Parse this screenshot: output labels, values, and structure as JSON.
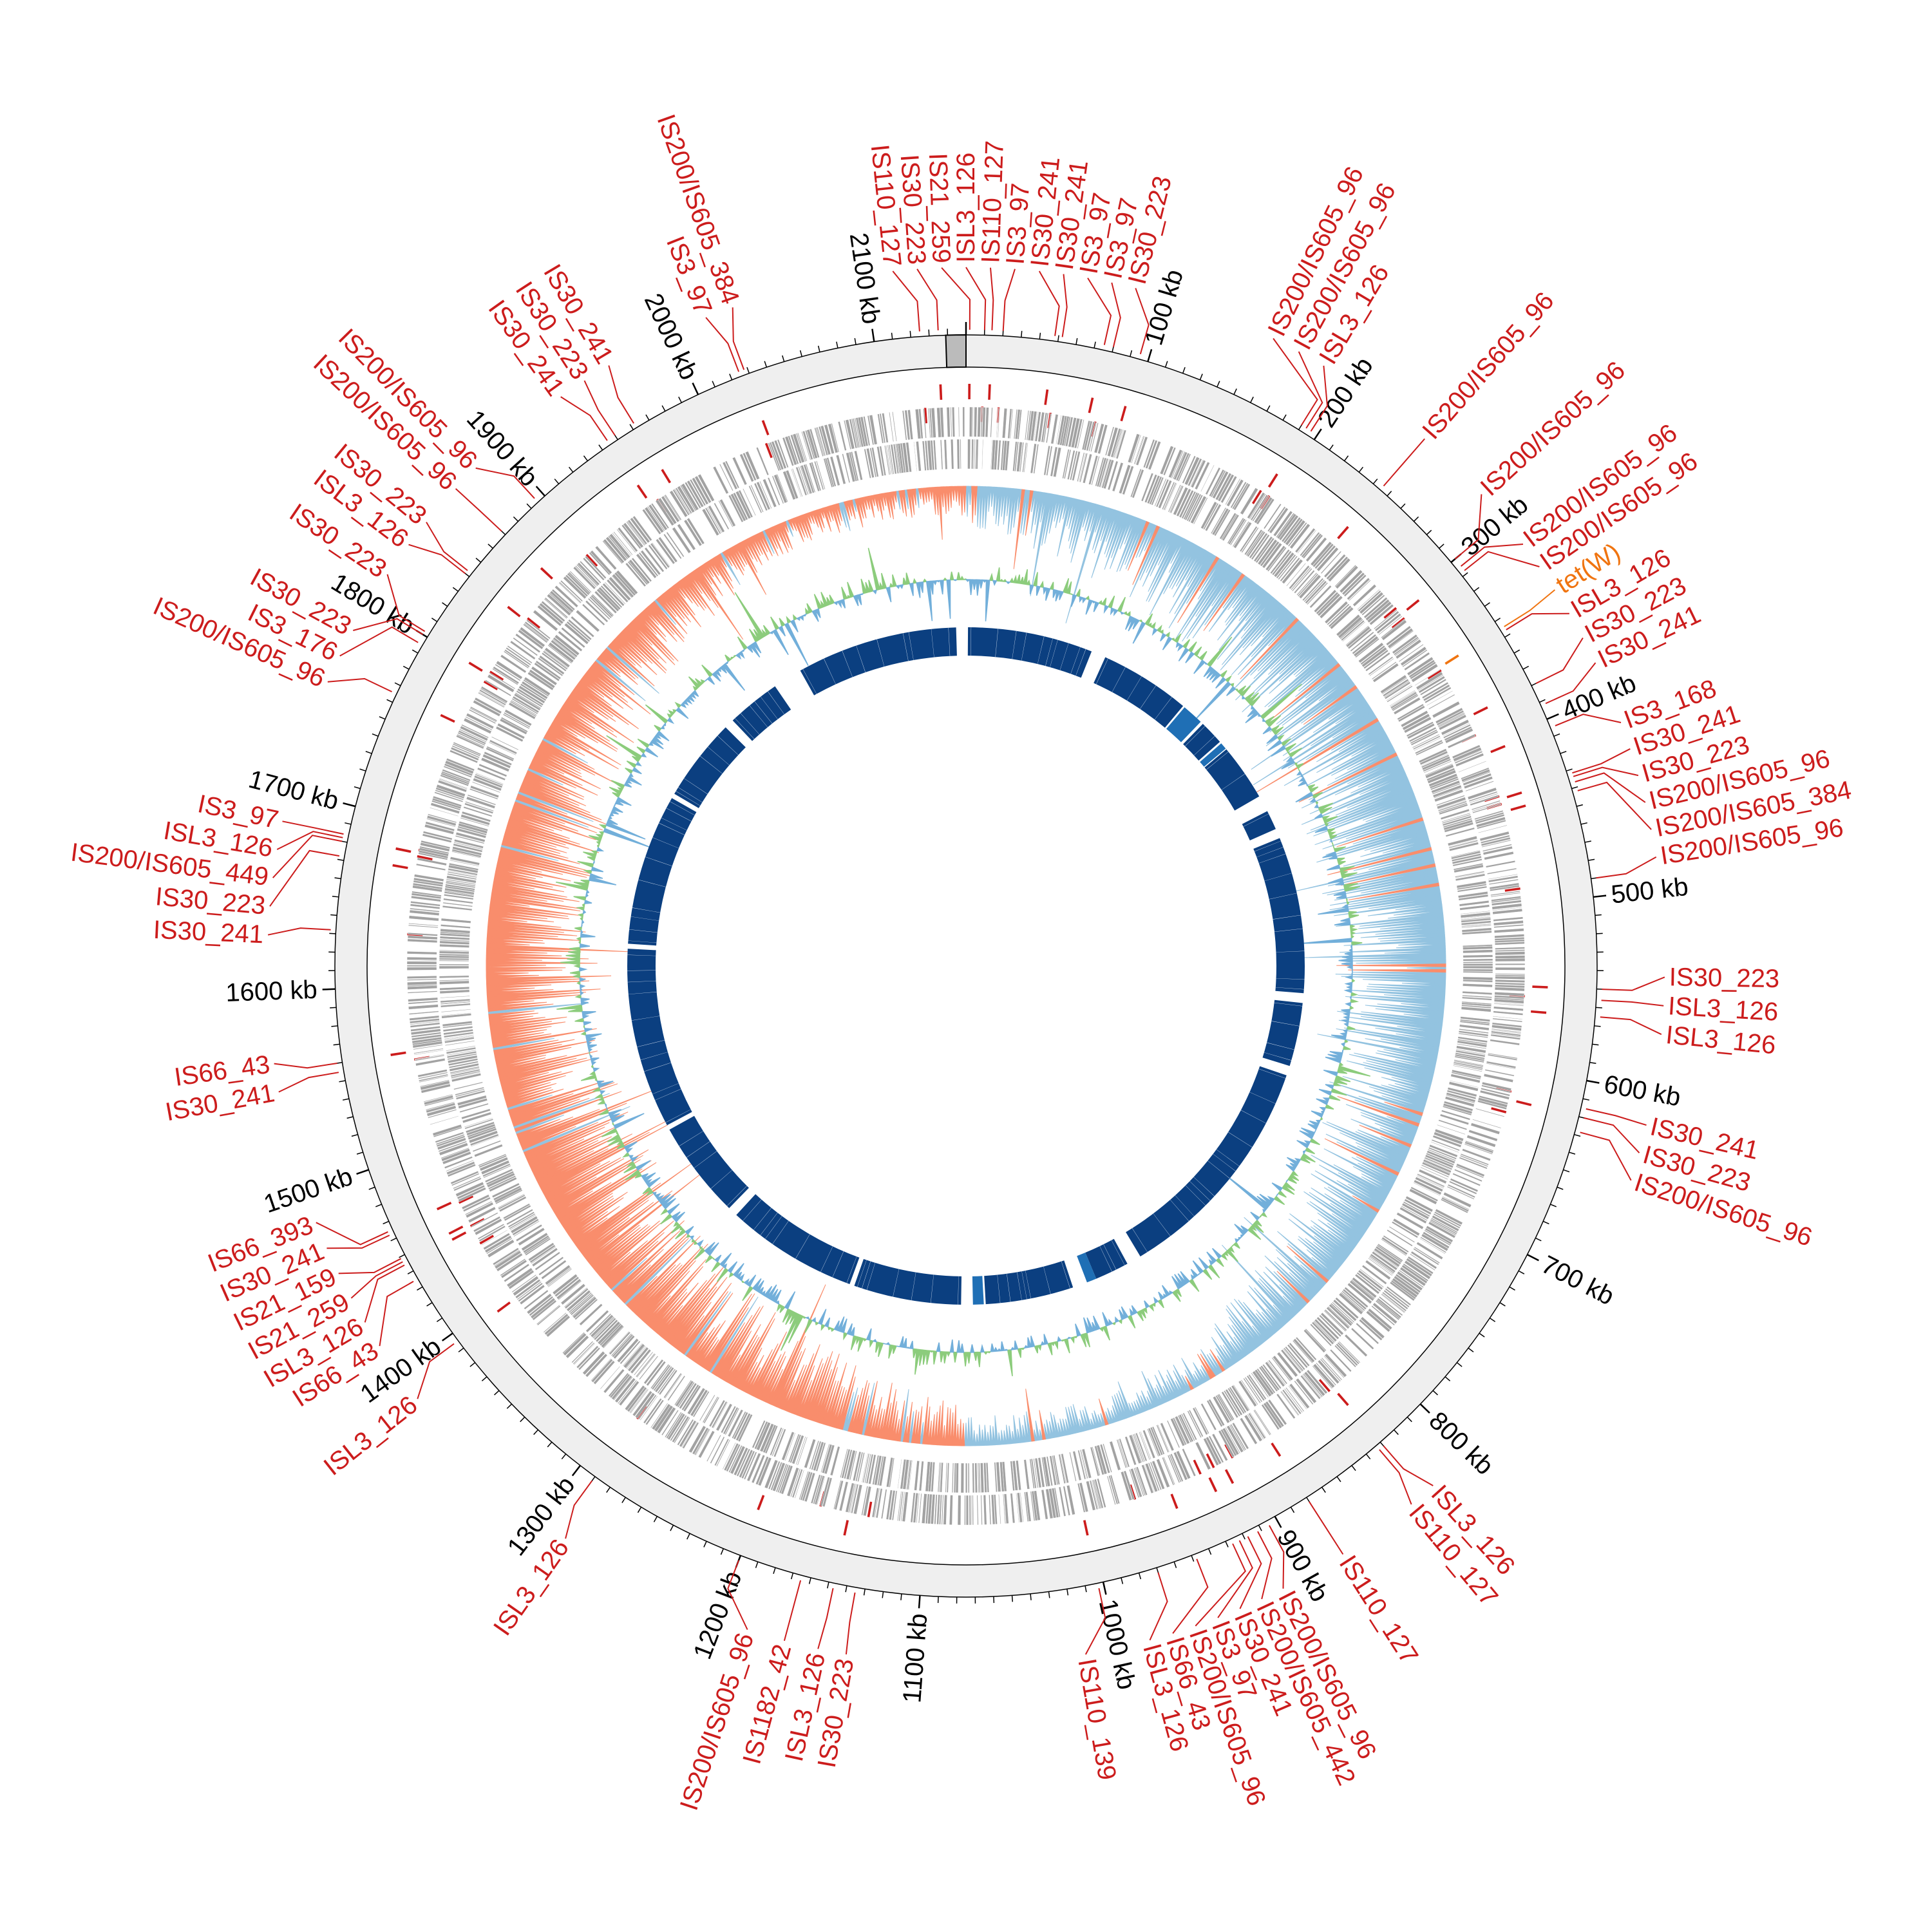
{
  "genome": {
    "length_kb": 2150
  },
  "colors": {
    "is_element": "#cc1c1c",
    "resistance_gene": "#f07410",
    "backbone": "#efefef",
    "origin_box": "#bbbbbb",
    "gene": "#a2a2a2",
    "gc_skew_pos": "#93c3e0",
    "gc_skew_neg": "#f98d6c",
    "gc_content_pos": "#8ccc7c",
    "gc_content_neg": "#72afda",
    "inner_block": "#0b3f80",
    "inner_block_alt": "#1f6fb5"
  },
  "ticks": [
    {
      "kb": 100,
      "label": "100 kb"
    },
    {
      "kb": 200,
      "label": "200 kb"
    },
    {
      "kb": 300,
      "label": "300 kb"
    },
    {
      "kb": 400,
      "label": "400 kb"
    },
    {
      "kb": 500,
      "label": "500 kb"
    },
    {
      "kb": 600,
      "label": "600 kb"
    },
    {
      "kb": 700,
      "label": "700 kb"
    },
    {
      "kb": 800,
      "label": "800 kb"
    },
    {
      "kb": 900,
      "label": "900 kb"
    },
    {
      "kb": 1000,
      "label": "1000 kb"
    },
    {
      "kb": 1100,
      "label": "1100 kb"
    },
    {
      "kb": 1200,
      "label": "1200 kb"
    },
    {
      "kb": 1300,
      "label": "1300 kb"
    },
    {
      "kb": 1400,
      "label": "1400 kb"
    },
    {
      "kb": 1500,
      "label": "1500 kb"
    },
    {
      "kb": 1600,
      "label": "1600 kb"
    },
    {
      "kb": 1700,
      "label": "1700 kb"
    },
    {
      "kb": 1800,
      "label": "1800 kb"
    },
    {
      "kb": 1900,
      "label": "1900 kb"
    },
    {
      "kb": 2000,
      "label": "2000 kb"
    },
    {
      "kb": 2100,
      "label": "2100 kb"
    }
  ],
  "features": [
    {
      "name": "IS21_259",
      "kb": 2,
      "type": "IS"
    },
    {
      "name": "ISL3_126",
      "kb": 10,
      "type": "IS"
    },
    {
      "name": "IS110_127",
      "kb": 14,
      "type": "IS"
    },
    {
      "name": "IS3_97",
      "kb": 20,
      "type": "IS"
    },
    {
      "name": "IS30_241",
      "kb": 48,
      "type": "IS"
    },
    {
      "name": "IS30_241",
      "kb": 52,
      "type": "IS"
    },
    {
      "name": "IS3_97",
      "kb": 75,
      "type": "IS"
    },
    {
      "name": "IS3_97",
      "kb": 80,
      "type": "IS"
    },
    {
      "name": "IS30_223",
      "kb": 95,
      "type": "IS"
    },
    {
      "name": "IS200/IS605_96",
      "kb": 190,
      "type": "IS"
    },
    {
      "name": "IS200/IS605_96",
      "kb": 193,
      "type": "IS"
    },
    {
      "name": "ISL3_126",
      "kb": 196,
      "type": "IS"
    },
    {
      "name": "IS200/IS605_96",
      "kb": 245,
      "type": "IS"
    },
    {
      "name": "IS200/IS605_96",
      "kb": 300,
      "type": "IS"
    },
    {
      "name": "IS200/IS605_96",
      "kb": 305,
      "type": "IS"
    },
    {
      "name": "IS200/IS605_96",
      "kb": 308,
      "type": "IS"
    },
    {
      "name": "tet(W)",
      "kb": 345,
      "type": "resistance"
    },
    {
      "name": "ISL3_126",
      "kb": 347,
      "type": "IS"
    },
    {
      "name": "IS30_223",
      "kb": 380,
      "type": "IS"
    },
    {
      "name": "IS30_241",
      "kb": 392,
      "type": "IS"
    },
    {
      "name": "IS3_168",
      "kb": 405,
      "type": "IS"
    },
    {
      "name": "IS30_241",
      "kb": 432,
      "type": "IS"
    },
    {
      "name": "IS30_223",
      "kb": 434,
      "type": "IS"
    },
    {
      "name": "IS200/IS605_96",
      "kb": 437,
      "type": "IS"
    },
    {
      "name": "IS200/IS605_384",
      "kb": 442,
      "type": "IS"
    },
    {
      "name": "IS200/IS605_96",
      "kb": 490,
      "type": "IS"
    },
    {
      "name": "IS30_223",
      "kb": 550,
      "type": "IS"
    },
    {
      "name": "ISL3_126",
      "kb": 556,
      "type": "IS"
    },
    {
      "name": "ISL3_126",
      "kb": 565,
      "type": "IS"
    },
    {
      "name": "IS30_241",
      "kb": 615,
      "type": "IS"
    },
    {
      "name": "IS30_223",
      "kb": 620,
      "type": "IS"
    },
    {
      "name": "IS200/IS605_96",
      "kb": 628,
      "type": "IS"
    },
    {
      "name": "ISL3_126",
      "kb": 830,
      "type": "IS"
    },
    {
      "name": "IS110_127",
      "kb": 833,
      "type": "IS"
    },
    {
      "name": "IS110_127",
      "kb": 880,
      "type": "IS"
    },
    {
      "name": "IS200/IS605_96",
      "kb": 905,
      "type": "IS"
    },
    {
      "name": "IS200/IS605_442",
      "kb": 912,
      "type": "IS"
    },
    {
      "name": "IS30_241",
      "kb": 918,
      "type": "IS"
    },
    {
      "name": "IS3_97",
      "kb": 923,
      "type": "IS"
    },
    {
      "name": "IS200/IS605_96",
      "kb": 927,
      "type": "IS"
    },
    {
      "name": "IS66_43",
      "kb": 948,
      "type": "IS"
    },
    {
      "name": "ISL3_126",
      "kb": 970,
      "type": "IS"
    },
    {
      "name": "IS110_139",
      "kb": 1003,
      "type": "IS"
    },
    {
      "name": "IS30_223",
      "kb": 1135,
      "type": "IS"
    },
    {
      "name": "ISL3_126",
      "kb": 1147,
      "type": "IS"
    },
    {
      "name": "IS1182_42",
      "kb": 1165,
      "type": "IS"
    },
    {
      "name": "IS200/IS605_96",
      "kb": 1200,
      "type": "IS"
    },
    {
      "name": "ISL3_126",
      "kb": 1290,
      "type": "IS"
    },
    {
      "name": "ISL3_126",
      "kb": 1395,
      "type": "IS"
    },
    {
      "name": "IS66_43",
      "kb": 1435,
      "type": "IS"
    },
    {
      "name": "ISL3_126",
      "kb": 1445,
      "type": "IS"
    },
    {
      "name": "IS21_259",
      "kb": 1447,
      "type": "IS"
    },
    {
      "name": "IS21_159",
      "kb": 1449,
      "type": "IS"
    },
    {
      "name": "IS30_241",
      "kb": 1463,
      "type": "IS"
    },
    {
      "name": "IS66_393",
      "kb": 1465,
      "type": "IS"
    },
    {
      "name": "IS30_241",
      "kb": 1555,
      "type": "IS"
    },
    {
      "name": "IS66_43",
      "kb": 1560,
      "type": "IS"
    },
    {
      "name": "IS30_241",
      "kb": 1632,
      "type": "IS"
    },
    {
      "name": "IS30_223",
      "kb": 1672,
      "type": "IS"
    },
    {
      "name": "IS200/IS605_449",
      "kb": 1680,
      "type": "IS"
    },
    {
      "name": "ISL3_126",
      "kb": 1682,
      "type": "IS"
    },
    {
      "name": "IS3_97",
      "kb": 1684,
      "type": "IS"
    },
    {
      "name": "IS200/IS605_96",
      "kb": 1765,
      "type": "IS"
    },
    {
      "name": "IS3_176",
      "kb": 1795,
      "type": "IS"
    },
    {
      "name": "IS30_223",
      "kb": 1800,
      "type": "IS"
    },
    {
      "name": "IS30_223",
      "kb": 1802,
      "type": "IS"
    },
    {
      "name": "ISL3_126",
      "kb": 1840,
      "type": "IS"
    },
    {
      "name": "IS30_223",
      "kb": 1842,
      "type": "IS"
    },
    {
      "name": "IS200/IS605_96",
      "kb": 1870,
      "type": "IS"
    },
    {
      "name": "IS200/IS605_96",
      "kb": 1895,
      "type": "IS"
    },
    {
      "name": "IS30_241",
      "kb": 1945,
      "type": "IS"
    },
    {
      "name": "IS30_223",
      "kb": 1950,
      "type": "IS"
    },
    {
      "name": "IS30_241",
      "kb": 1962,
      "type": "IS"
    },
    {
      "name": "IS3_97",
      "kb": 2025,
      "type": "IS"
    },
    {
      "name": "IS200/IS605_384",
      "kb": 2028,
      "type": "IS"
    },
    {
      "name": "IS110_127",
      "kb": 2125,
      "type": "IS"
    },
    {
      "name": "IS30_223",
      "kb": 2135,
      "type": "IS"
    }
  ],
  "inner_blocks_kb": [
    [
      2,
      130
    ],
    [
      145,
      238
    ],
    [
      265,
      290
    ],
    [
      300,
      358
    ],
    [
      375,
      395
    ],
    [
      405,
      565
    ],
    [
      575,
      640
    ],
    [
      650,
      890
    ],
    [
      905,
      940
    ],
    [
      965,
      1055
    ],
    [
      1080,
      1190
    ],
    [
      1195,
      1330
    ],
    [
      1340,
      1440
    ],
    [
      1445,
      1630
    ],
    [
      1635,
      1790
    ],
    [
      1795,
      1880
    ],
    [
      1890,
      1945
    ],
    [
      1975,
      2140
    ]
  ],
  "inner_blocks_alt_kb": [
    [
      240,
      262
    ],
    [
      292,
      299
    ],
    [
      940,
      950
    ],
    [
      1057,
      1068
    ]
  ]
}
